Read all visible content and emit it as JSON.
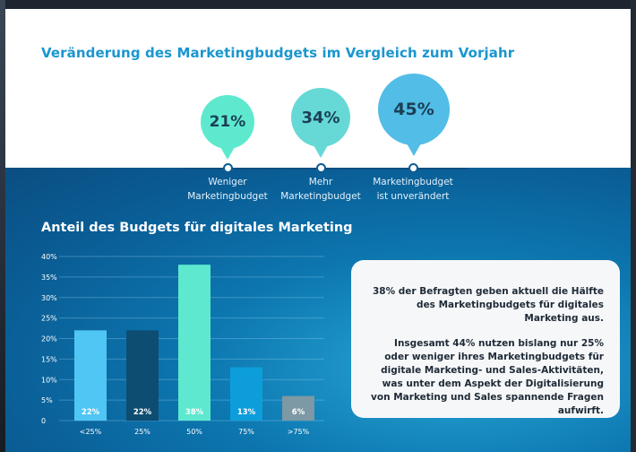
{
  "header": {
    "title": "Veränderung des Marketingbudgets im Vergleich zum Vorjahr"
  },
  "budget_change": [
    {
      "value": "21%",
      "label_line1": "Weniger",
      "label_line2": "Marketingbudget",
      "color": "#5ee9cf"
    },
    {
      "value": "34%",
      "label_line1": "Mehr",
      "label_line2": "Marketingbudget",
      "color": "#66d9d6"
    },
    {
      "value": "45%",
      "label_line1": "Marketingbudget",
      "label_line2": "ist unverändert",
      "color": "#52bde6"
    }
  ],
  "chart_data": {
    "type": "bar",
    "title": "Anteil des Budgets für digitales Marketing",
    "categories": [
      "<25%",
      "25%",
      "50%",
      "75%",
      ">75%"
    ],
    "values": [
      22,
      22,
      38,
      13,
      6
    ],
    "data_labels": [
      "22%",
      "22%",
      "38%",
      "13%",
      "6%"
    ],
    "colors": [
      "#4fc6f3",
      "#0d4d72",
      "#5de8cf",
      "#0d9ddb",
      "#7c99a5"
    ],
    "y_ticks": [
      "0",
      "5%",
      "10%",
      "15%",
      "20%",
      "25%",
      "30%",
      "35%",
      "40%"
    ],
    "ylim": [
      0,
      40
    ],
    "grid": true
  },
  "info_box": {
    "paragraph1": "38% der Befragten geben aktuell die Hälfte des Marketingbudgets für digitales Marketing aus.",
    "paragraph2": "Insgesamt 44% nutzen bislang nur 25% oder weniger ihres Marketingbudgets für digitale Marketing- und Sales-Aktivitäten, was unter dem Aspekt der Digitalisierung von Marketing und Sales spannende Fragen aufwirft."
  }
}
